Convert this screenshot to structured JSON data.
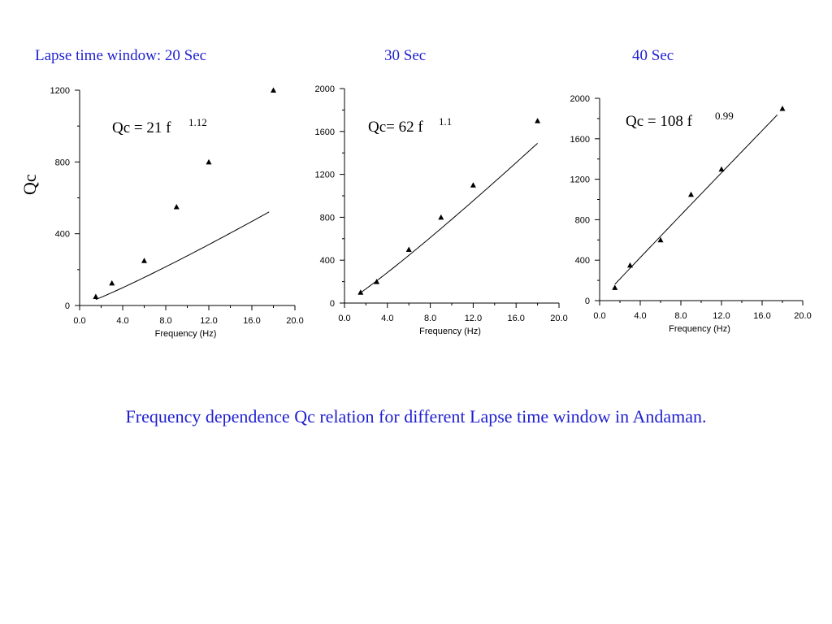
{
  "panel_titles": [
    "Lapse time window: 20 Sec",
    "30 Sec",
    "40 Sec"
  ],
  "ylabel": "Qc",
  "caption": "Frequency dependence Qc relation for different Lapse time window in Andaman.",
  "chart_data": [
    {
      "type": "scatter",
      "title": "Lapse time window: 20 Sec",
      "xlabel": "Frequency (Hz)",
      "ylabel": "Qc",
      "xlim": [
        0,
        20
      ],
      "ylim": [
        0,
        1200
      ],
      "xticks": [
        "0.0",
        "4.0",
        "8.0",
        "12.0",
        "16.0",
        "20.0"
      ],
      "yticks": [
        "0",
        "400",
        "800",
        "1200"
      ],
      "x": [
        1.5,
        3,
        6,
        9,
        12,
        18
      ],
      "y": [
        50,
        125,
        250,
        550,
        800,
        1200
      ],
      "fit": {
        "a": 21,
        "n": 1.12,
        "x_range": [
          1.5,
          17.6
        ],
        "label": "Qc = 21 f",
        "exponent": "1.12"
      }
    },
    {
      "type": "scatter",
      "title": "30 Sec",
      "xlabel": "Frequency (Hz)",
      "ylabel": "",
      "xlim": [
        0,
        20
      ],
      "ylim": [
        0,
        2000
      ],
      "xticks": [
        "0.0",
        "4.0",
        "8.0",
        "12.0",
        "16.0",
        "20.0"
      ],
      "yticks": [
        "0",
        "400",
        "800",
        "1200",
        "1600",
        "2000"
      ],
      "x": [
        1.5,
        3,
        6,
        9,
        12,
        18
      ],
      "y": [
        100,
        200,
        500,
        800,
        1100,
        1700
      ],
      "fit": {
        "a": 62,
        "n": 1.1,
        "x_range": [
          1.5,
          18
        ],
        "label": "Qc= 62 f",
        "exponent": "1.1"
      }
    },
    {
      "type": "scatter",
      "title": "40 Sec",
      "xlabel": "Frequency (Hz)",
      "ylabel": "",
      "xlim": [
        0,
        20
      ],
      "ylim": [
        0,
        2000
      ],
      "xticks": [
        "0.0",
        "4.0",
        "8.0",
        "12.0",
        "16.0",
        "20.0"
      ],
      "yticks": [
        "0",
        "400",
        "800",
        "1200",
        "1600",
        "2000"
      ],
      "x": [
        1.5,
        3,
        6,
        9,
        12,
        18
      ],
      "y": [
        130,
        350,
        600,
        1050,
        1300,
        1900
      ],
      "fit": {
        "a": 108,
        "n": 0.99,
        "x_range": [
          1.5,
          17.5
        ],
        "label": "Qc = 108 f",
        "exponent": "0.99"
      }
    }
  ]
}
